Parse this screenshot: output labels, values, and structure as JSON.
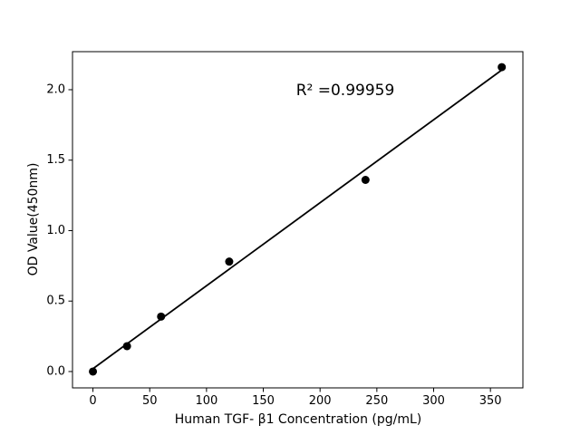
{
  "figure": {
    "background": "#ffffff",
    "frame_color": "#000000"
  },
  "chart_data": {
    "type": "scatter",
    "title": "",
    "xlabel": "Human TGF- β1 Concentration (pg/mL)",
    "ylabel": "OD Value(450nm)",
    "annotation": "R² =0.99959",
    "x": [
      0,
      30,
      60,
      120,
      240,
      360
    ],
    "y": [
      0.0,
      0.18,
      0.39,
      0.78,
      1.36,
      2.16
    ],
    "fit_line": {
      "x": [
        0,
        360
      ],
      "y": [
        0.02,
        2.14
      ]
    },
    "x_ticks": [
      "0",
      "50",
      "100",
      "150",
      "200",
      "250",
      "300",
      "350"
    ],
    "x_tick_values": [
      0,
      50,
      100,
      150,
      200,
      250,
      300,
      350
    ],
    "y_ticks": [
      "0.0",
      "0.5",
      "1.0",
      "1.5",
      "2.0"
    ],
    "y_tick_values": [
      0.0,
      0.5,
      1.0,
      1.5,
      2.0
    ],
    "xlim": [
      -18,
      378.6
    ],
    "ylim": [
      -0.116,
      2.27
    ],
    "grid": false,
    "legend": "none",
    "marker_color": "#000000",
    "line_color": "#000000",
    "marker_size_px": 4.5
  }
}
